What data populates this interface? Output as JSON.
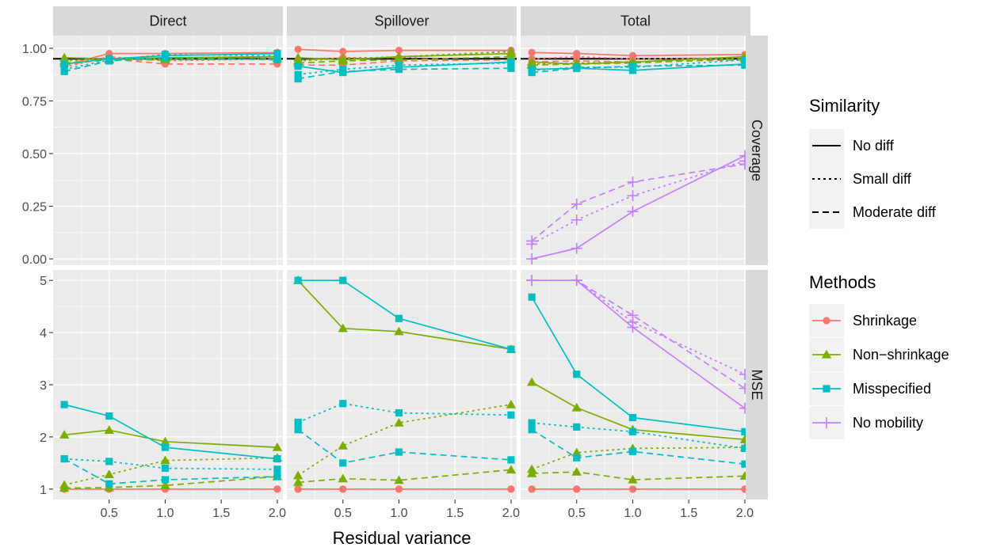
{
  "chart_data": {
    "type": "line",
    "xlabel": "Residual variance",
    "x": [
      0.1,
      0.5,
      1.0,
      2.0
    ],
    "x_ticks": [
      "0.5",
      "1.0",
      "1.5",
      "2.0"
    ],
    "x_tick_values": [
      0.5,
      1.0,
      1.5,
      2.0
    ],
    "xlim": [
      0.0,
      2.05
    ],
    "columns": [
      "Direct",
      "Spillover",
      "Total"
    ],
    "rows": [
      {
        "label": "Coverage",
        "ylim": [
          -0.03,
          1.06
        ],
        "ticks": [
          "0.00",
          "0.25",
          "0.50",
          "0.75",
          "1.00"
        ],
        "tick_values": [
          0,
          0.25,
          0.5,
          0.75,
          1.0
        ],
        "reference_line": 0.95
      },
      {
        "label": "MSE",
        "ylim": [
          0.8,
          5.2
        ],
        "ticks": [
          "1",
          "2",
          "3",
          "4",
          "5"
        ],
        "tick_values": [
          1,
          2,
          3,
          4,
          5
        ]
      }
    ],
    "legend": {
      "similarity_title": "Similarity",
      "similarity": [
        {
          "name": "No diff",
          "dash": "solid"
        },
        {
          "name": "Small diff",
          "dash": "dotted"
        },
        {
          "name": "Moderate diff",
          "dash": "dashed"
        }
      ],
      "methods_title": "Methods",
      "methods": [
        {
          "name": "Shrinkage",
          "color": "#F8766D",
          "shape": "circle"
        },
        {
          "name": "Non−shrinkage",
          "color": "#7CAE00",
          "shape": "triangle"
        },
        {
          "name": "Misspecified",
          "color": "#00BFC4",
          "shape": "square"
        },
        {
          "name": "No mobility",
          "color": "#C77CFF",
          "shape": "plus"
        }
      ]
    },
    "panels": [
      {
        "column": "Direct",
        "row": "Coverage",
        "series": [
          {
            "method": "Shrinkage",
            "similarity": "No diff",
            "values": [
              0.92,
              0.975,
              0.975,
              0.98
            ]
          },
          {
            "method": "Shrinkage",
            "similarity": "Small diff",
            "values": [
              0.91,
              0.96,
              0.94,
              0.95
            ]
          },
          {
            "method": "Shrinkage",
            "similarity": "Moderate diff",
            "values": [
              0.92,
              0.95,
              0.925,
              0.925
            ]
          },
          {
            "method": "Non−shrinkage",
            "similarity": "No diff",
            "values": [
              0.955,
              0.95,
              0.955,
              0.96
            ]
          },
          {
            "method": "Non−shrinkage",
            "similarity": "Small diff",
            "values": [
              0.94,
              0.95,
              0.95,
              0.96
            ]
          },
          {
            "method": "Non−shrinkage",
            "similarity": "Moderate diff",
            "values": [
              0.93,
              0.945,
              0.945,
              0.95
            ]
          },
          {
            "method": "Misspecified",
            "similarity": "No diff",
            "values": [
              0.925,
              0.95,
              0.965,
              0.975
            ]
          },
          {
            "method": "Misspecified",
            "similarity": "Small diff",
            "values": [
              0.9,
              0.945,
              0.97,
              0.965
            ]
          },
          {
            "method": "Misspecified",
            "similarity": "Moderate diff",
            "values": [
              0.89,
              0.94,
              0.955,
              0.945
            ]
          }
        ]
      },
      {
        "column": "Spillover",
        "row": "Coverage",
        "series": [
          {
            "method": "Shrinkage",
            "similarity": "No diff",
            "values": [
              0.995,
              0.985,
              0.99,
              0.99
            ]
          },
          {
            "method": "Shrinkage",
            "similarity": "Small diff",
            "values": [
              0.94,
              0.955,
              0.955,
              0.985
            ]
          },
          {
            "method": "Shrinkage",
            "similarity": "Moderate diff",
            "values": [
              0.92,
              0.92,
              0.94,
              0.945
            ]
          },
          {
            "method": "Non−shrinkage",
            "similarity": "No diff",
            "values": [
              0.955,
              0.945,
              0.96,
              0.975
            ]
          },
          {
            "method": "Non−shrinkage",
            "similarity": "Small diff",
            "values": [
              0.94,
              0.95,
              0.96,
              0.985
            ]
          },
          {
            "method": "Non−shrinkage",
            "similarity": "Moderate diff",
            "values": [
              0.93,
              0.94,
              0.945,
              0.96
            ]
          },
          {
            "method": "Misspecified",
            "similarity": "No diff",
            "values": [
              0.915,
              0.885,
              0.91,
              0.935
            ]
          },
          {
            "method": "Misspecified",
            "similarity": "Small diff",
            "values": [
              0.875,
              0.9,
              0.92,
              0.93
            ]
          },
          {
            "method": "Misspecified",
            "similarity": "Moderate diff",
            "values": [
              0.855,
              0.89,
              0.9,
              0.905
            ]
          }
        ]
      },
      {
        "column": "Total",
        "row": "Coverage",
        "series": [
          {
            "method": "Shrinkage",
            "similarity": "No diff",
            "values": [
              0.98,
              0.975,
              0.965,
              0.97
            ]
          },
          {
            "method": "Shrinkage",
            "similarity": "Small diff",
            "values": [
              0.95,
              0.96,
              0.95,
              0.955
            ]
          },
          {
            "method": "Shrinkage",
            "similarity": "Moderate diff",
            "values": [
              0.935,
              0.94,
              0.935,
              0.945
            ]
          },
          {
            "method": "Non−shrinkage",
            "similarity": "No diff",
            "values": [
              0.935,
              0.925,
              0.935,
              0.96
            ]
          },
          {
            "method": "Non−shrinkage",
            "similarity": "Small diff",
            "values": [
              0.925,
              0.93,
              0.935,
              0.955
            ]
          },
          {
            "method": "Non−shrinkage",
            "similarity": "Moderate diff",
            "values": [
              0.92,
              0.925,
              0.93,
              0.95
            ]
          },
          {
            "method": "Misspecified",
            "similarity": "No diff",
            "values": [
              0.9,
              0.905,
              0.895,
              0.925
            ]
          },
          {
            "method": "Misspecified",
            "similarity": "Small diff",
            "values": [
              0.895,
              0.91,
              0.91,
              0.945
            ]
          },
          {
            "method": "Misspecified",
            "similarity": "Moderate diff",
            "values": [
              0.885,
              0.905,
              0.915,
              0.92
            ]
          },
          {
            "method": "No mobility",
            "similarity": "No diff",
            "values": [
              0.0,
              0.05,
              0.225,
              0.49
            ]
          },
          {
            "method": "No mobility",
            "similarity": "Small diff",
            "values": [
              0.07,
              0.185,
              0.3,
              0.465
            ]
          },
          {
            "method": "No mobility",
            "similarity": "Moderate diff",
            "values": [
              0.085,
              0.26,
              0.365,
              0.45
            ]
          }
        ]
      },
      {
        "column": "Direct",
        "row": "MSE",
        "series": [
          {
            "method": "Shrinkage",
            "similarity": "No diff",
            "values": [
              1.0,
              1.0,
              1.0,
              1.0
            ]
          },
          {
            "method": "Shrinkage",
            "similarity": "Small diff",
            "values": [
              1.0,
              1.0,
              1.0,
              1.0
            ]
          },
          {
            "method": "Shrinkage",
            "similarity": "Moderate diff",
            "values": [
              1.0,
              1.0,
              1.0,
              1.0
            ]
          },
          {
            "method": "Non−shrinkage",
            "similarity": "No diff",
            "values": [
              2.04,
              2.13,
              1.91,
              1.8
            ]
          },
          {
            "method": "Non−shrinkage",
            "similarity": "Small diff",
            "values": [
              1.08,
              1.28,
              1.55,
              1.6
            ]
          },
          {
            "method": "Non−shrinkage",
            "similarity": "Moderate diff",
            "values": [
              1.02,
              1.03,
              1.07,
              1.24
            ]
          },
          {
            "method": "Misspecified",
            "similarity": "No diff",
            "values": [
              2.62,
              2.4,
              1.8,
              1.58
            ]
          },
          {
            "method": "Misspecified",
            "similarity": "Small diff",
            "values": [
              1.58,
              1.53,
              1.4,
              1.38
            ]
          },
          {
            "method": "Misspecified",
            "similarity": "Moderate diff",
            "values": [
              1.58,
              1.1,
              1.18,
              1.24
            ]
          }
        ]
      },
      {
        "column": "Spillover",
        "row": "MSE",
        "series": [
          {
            "method": "Shrinkage",
            "similarity": "No diff",
            "values": [
              1.0,
              1.0,
              1.0,
              1.0
            ]
          },
          {
            "method": "Shrinkage",
            "similarity": "Small diff",
            "values": [
              1.0,
              1.0,
              1.0,
              1.0
            ]
          },
          {
            "method": "Shrinkage",
            "similarity": "Moderate diff",
            "values": [
              1.0,
              1.0,
              1.0,
              1.0
            ]
          },
          {
            "method": "Non−shrinkage",
            "similarity": "No diff",
            "values": [
              5.0,
              4.08,
              4.02,
              3.68
            ]
          },
          {
            "method": "Non−shrinkage",
            "similarity": "Small diff",
            "values": [
              1.26,
              1.83,
              2.27,
              2.62
            ]
          },
          {
            "method": "Non−shrinkage",
            "similarity": "Moderate diff",
            "values": [
              1.13,
              1.2,
              1.17,
              1.37
            ]
          },
          {
            "method": "Misspecified",
            "similarity": "No diff",
            "values": [
              5.0,
              5.0,
              4.27,
              3.68
            ]
          },
          {
            "method": "Misspecified",
            "similarity": "Small diff",
            "values": [
              2.28,
              2.64,
              2.46,
              2.42
            ]
          },
          {
            "method": "Misspecified",
            "similarity": "Moderate diff",
            "values": [
              2.14,
              1.5,
              1.71,
              1.56
            ]
          }
        ]
      },
      {
        "column": "Total",
        "row": "MSE",
        "series": [
          {
            "method": "Shrinkage",
            "similarity": "No diff",
            "values": [
              1.0,
              1.0,
              1.0,
              1.0
            ]
          },
          {
            "method": "Shrinkage",
            "similarity": "Small diff",
            "values": [
              1.0,
              1.0,
              1.0,
              1.0
            ]
          },
          {
            "method": "Shrinkage",
            "similarity": "Moderate diff",
            "values": [
              1.0,
              1.0,
              1.0,
              1.0
            ]
          },
          {
            "method": "Non−shrinkage",
            "similarity": "No diff",
            "values": [
              3.05,
              2.56,
              2.14,
              1.95
            ]
          },
          {
            "method": "Non−shrinkage",
            "similarity": "Small diff",
            "values": [
              1.38,
              1.7,
              1.78,
              1.8
            ]
          },
          {
            "method": "Non−shrinkage",
            "similarity": "Moderate diff",
            "values": [
              1.3,
              1.33,
              1.18,
              1.25
            ]
          },
          {
            "method": "Misspecified",
            "similarity": "No diff",
            "values": [
              4.68,
              3.2,
              2.37,
              2.1
            ]
          },
          {
            "method": "Misspecified",
            "similarity": "Small diff",
            "values": [
              2.27,
              2.19,
              2.1,
              1.78
            ]
          },
          {
            "method": "Misspecified",
            "similarity": "Moderate diff",
            "values": [
              2.14,
              1.6,
              1.72,
              1.48
            ]
          },
          {
            "method": "No mobility",
            "similarity": "No diff",
            "values": [
              5.0,
              5.0,
              4.1,
              2.55
            ]
          },
          {
            "method": "No mobility",
            "similarity": "Small diff",
            "values": [
              5.0,
              5.0,
              4.2,
              3.2
            ]
          },
          {
            "method": "No mobility",
            "similarity": "Moderate diff",
            "values": [
              5.0,
              5.0,
              4.33,
              2.93
            ]
          }
        ]
      }
    ]
  }
}
